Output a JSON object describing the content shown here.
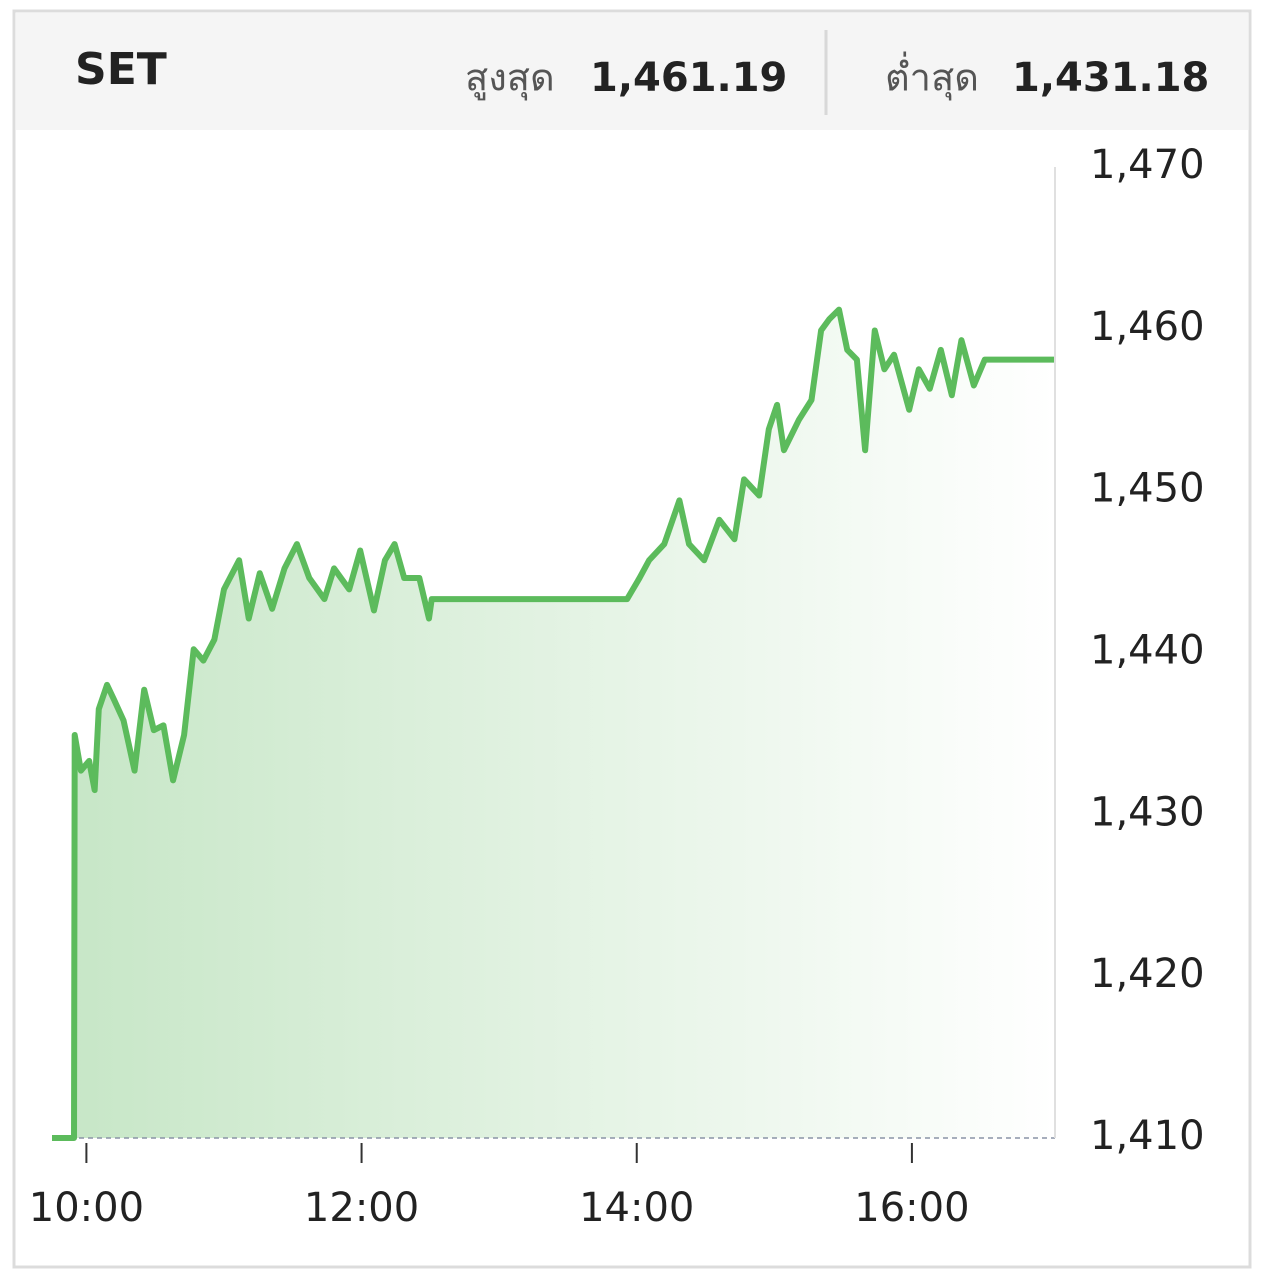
{
  "header": {
    "title": "SET",
    "high_label": "สูงสุด",
    "high_value": "1,461.19",
    "low_label": "ต่ำสุด",
    "low_value": "1,431.18"
  },
  "chart_data": {
    "type": "line",
    "color": "#5cbb5c",
    "x": [
      9.75,
      9.91,
      9.915,
      9.96,
      10.02,
      10.06,
      10.09,
      10.15,
      10.2,
      10.27,
      10.35,
      10.42,
      10.49,
      10.56,
      10.63,
      10.71,
      10.78,
      10.85,
      10.93,
      11.0,
      11.11,
      11.18,
      11.26,
      11.35,
      11.44,
      11.53,
      11.62,
      11.73,
      11.8,
      11.91,
      11.99,
      12.09,
      12.17,
      12.24,
      12.31,
      12.42,
      12.49,
      12.51,
      13.93,
      14.02,
      14.09,
      14.2,
      14.31,
      14.38,
      14.49,
      14.6,
      14.71,
      14.78,
      14.89,
      14.96,
      15.02,
      15.07,
      15.18,
      15.27,
      15.34,
      15.4,
      15.47,
      15.53,
      15.6,
      15.66,
      15.73,
      15.8,
      15.87,
      15.98,
      16.05,
      16.13,
      16.21,
      16.29,
      16.36,
      16.45,
      16.53,
      16.67,
      17.04
    ],
    "values": [
      1410,
      1410,
      1434.9,
      1432.7,
      1433.3,
      1431.5,
      1436.5,
      1438,
      1437.1,
      1435.8,
      1432.7,
      1437.7,
      1435.2,
      1435.5,
      1432.1,
      1434.9,
      1440.2,
      1439.5,
      1440.8,
      1443.9,
      1445.7,
      1442.1,
      1444.9,
      1442.7,
      1445.2,
      1446.7,
      1444.6,
      1443.3,
      1445.2,
      1443.9,
      1446.3,
      1442.6,
      1445.7,
      1446.7,
      1444.6,
      1444.6,
      1442.1,
      1443.3,
      1443.3,
      1444.6,
      1445.7,
      1446.7,
      1449.4,
      1446.7,
      1445.7,
      1448.2,
      1447,
      1450.7,
      1449.7,
      1453.8,
      1455.3,
      1452.5,
      1454.4,
      1455.6,
      1459.9,
      1460.6,
      1461.19,
      1458.7,
      1458.1,
      1452.5,
      1459.9,
      1457.5,
      1458.4,
      1455,
      1457.5,
      1456.3,
      1458.7,
      1455.9,
      1459.3,
      1456.5,
      1458.1,
      1458.1,
      1458.1
    ],
    "xlim": [
      9.75,
      17.04
    ],
    "xticks": [
      {
        "value": 10,
        "label": "10:00"
      },
      {
        "value": 12,
        "label": "12:00"
      },
      {
        "value": 14,
        "label": "14:00"
      },
      {
        "value": 16,
        "label": "16:00"
      }
    ],
    "ylim": [
      1410,
      1470
    ],
    "yticks": [
      {
        "value": 1410,
        "label": "1,410"
      },
      {
        "value": 1420,
        "label": "1,420"
      },
      {
        "value": 1430,
        "label": "1,430"
      },
      {
        "value": 1440,
        "label": "1,440"
      },
      {
        "value": 1450,
        "label": "1,450"
      },
      {
        "value": 1460,
        "label": "1,460"
      },
      {
        "value": 1470,
        "label": "1,470"
      }
    ],
    "reference_line": 1410
  }
}
